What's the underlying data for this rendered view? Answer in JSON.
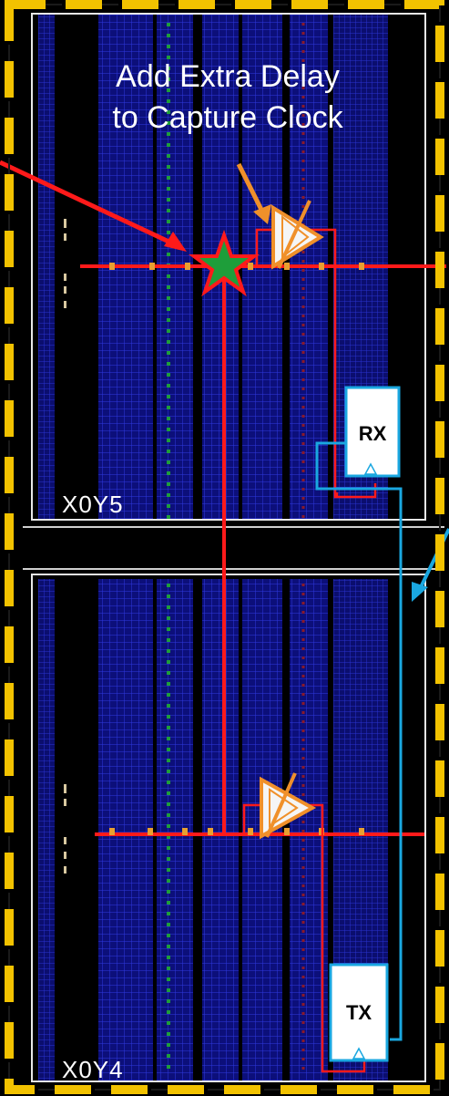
{
  "callout": {
    "line1": "Add Extra Delay",
    "line2": "to Capture Clock"
  },
  "regions": {
    "upper_label": "X0Y5",
    "lower_label": "X0Y4"
  },
  "blocks": {
    "rx_label": "RX",
    "tx_label": "TX"
  },
  "colors": {
    "frame_dash": "#f2c200",
    "background": "#000000",
    "fabric_blue": "#1e22c8",
    "clock_route": "#ff1a1a",
    "data_route": "#1aa7e0",
    "buffer_orange": "#f0902a",
    "star_fill": "#1e9e3a",
    "region_border": "#e8e8e8"
  },
  "icons": {
    "clock_buffer": "buffer-triangle-icon",
    "clock_root": "star-icon"
  }
}
